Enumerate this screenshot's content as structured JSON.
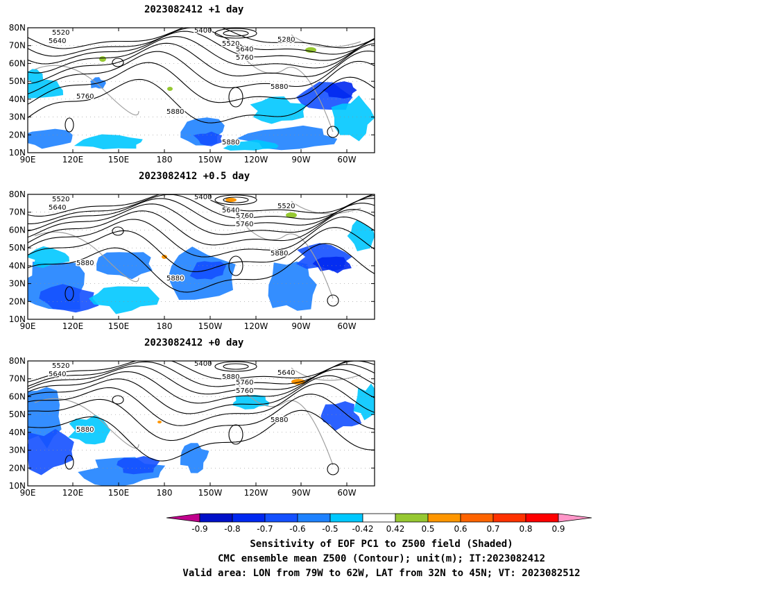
{
  "panels": [
    {
      "title": "2023082412 +1 day",
      "contour_labels": [
        "5520",
        "5640",
        "5400",
        "5280",
        "5520",
        "5640",
        "5760",
        "5880",
        "5760",
        "5880",
        "5880"
      ],
      "shade_fraction_note": ""
    },
    {
      "title": "2023082412 +0.5 day",
      "contour_labels": [
        "5520",
        "5640",
        "5400",
        "5520",
        "5640",
        "5760",
        "5760",
        "5880",
        "5880",
        "5880"
      ]
    },
    {
      "title": "2023082412 +0 day",
      "contour_labels": [
        "5520",
        "5640",
        "5400",
        "5640",
        "5880",
        "5760",
        "5760",
        "5880",
        "5880"
      ]
    }
  ],
  "axes": {
    "lat_ticks": [
      "80N",
      "70N",
      "60N",
      "50N",
      "40N",
      "30N",
      "20N",
      "10N"
    ],
    "lon_ticks": [
      "90E",
      "120E",
      "150E",
      "180",
      "150W",
      "120W",
      "90W",
      "60W"
    ]
  },
  "colorbar": {
    "labels": [
      "-0.9",
      "-0.8",
      "-0.7",
      "-0.6",
      "-0.5",
      "-0.42",
      "0.42",
      "0.5",
      "0.6",
      "0.7",
      "0.8",
      "0.9"
    ],
    "colors": [
      "#c0008c",
      "#0010c8",
      "#0028f0",
      "#1450ff",
      "#1e82ff",
      "#00c8ff",
      "#ffffff",
      "#96c832",
      "#ff9600",
      "#ff6400",
      "#ff3200",
      "#ff0000",
      "#ff96c8"
    ]
  },
  "captions": [
    "Sensitivity of EOF PC1 to Z500 field (Shaded)",
    "CMC ensemble mean Z500 (Contour); unit(m); IT:2023082412",
    "Valid area: LON from 79W to 62W, LAT from 32N to 45N; VT: 2023082512"
  ],
  "colors": {
    "contour": "#000000",
    "coast": "#a0a0a0",
    "grid": "#909090"
  }
}
